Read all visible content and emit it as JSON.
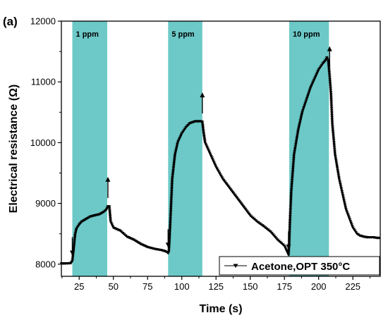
{
  "chart_data": {
    "type": "line",
    "panel_label": "(a)",
    "title": "",
    "xlabel": "Time (s)",
    "ylabel": "Electrical resistance (Ω)",
    "xlim": [
      12,
      245
    ],
    "ylim": [
      7800,
      12000
    ],
    "xticks": [
      25,
      50,
      75,
      100,
      125,
      150,
      175,
      200,
      225
    ],
    "yticks": [
      8000,
      9000,
      10000,
      11000,
      12000
    ],
    "grid": false,
    "legend": {
      "position": "bottom-right",
      "entries": [
        "Acetone,OPT 350°C"
      ]
    },
    "band_color": "#6cc9c7",
    "line_color": "#000000",
    "exposure_bands": [
      {
        "label": "1 ppm",
        "start": 20,
        "end": 45.5
      },
      {
        "label": "5 ppm",
        "start": 90,
        "end": 115
      },
      {
        "label": "10 ppm",
        "start": 178.5,
        "end": 207.5
      }
    ],
    "arrows": [
      {
        "x": 20,
        "direction": "down"
      },
      {
        "x": 46,
        "direction": "up"
      },
      {
        "x": 90,
        "direction": "down"
      },
      {
        "x": 115,
        "direction": "up"
      },
      {
        "x": 178,
        "direction": "down"
      },
      {
        "x": 208,
        "direction": "up"
      }
    ],
    "series": [
      {
        "name": "Acetone,OPT 350°C",
        "marker": "triangle-down",
        "x": [
          12,
          15,
          19,
          20,
          21,
          22,
          23,
          25,
          27,
          30,
          33,
          36,
          40,
          43,
          44,
          45,
          46,
          47,
          48,
          50,
          55,
          60,
          65,
          70,
          75,
          80,
          85,
          88,
          89,
          90,
          90.5,
          91,
          92,
          93,
          95,
          97,
          100,
          103,
          106,
          110,
          112,
          114,
          115,
          116,
          117,
          118,
          120,
          125,
          130,
          135,
          140,
          145,
          150,
          155,
          160,
          165,
          170,
          175,
          177,
          178,
          178.5,
          179,
          180,
          182,
          185,
          188,
          191,
          194,
          197,
          200,
          203,
          205,
          206,
          207,
          208,
          209,
          210,
          212,
          215,
          220,
          225,
          228,
          230,
          233,
          236,
          240,
          243,
          245
        ],
        "y": [
          8010,
          8010,
          8015,
          8050,
          8250,
          8480,
          8580,
          8650,
          8700,
          8740,
          8780,
          8800,
          8820,
          8860,
          8880,
          8900,
          8950,
          8950,
          8700,
          8600,
          8550,
          8450,
          8400,
          8330,
          8280,
          8250,
          8230,
          8210,
          8200,
          8180,
          8200,
          8400,
          8900,
          9400,
          9800,
          10000,
          10150,
          10250,
          10320,
          10350,
          10350,
          10350,
          10340,
          10150,
          10000,
          9950,
          9850,
          9600,
          9400,
          9250,
          9100,
          8950,
          8800,
          8700,
          8620,
          8530,
          8400,
          8300,
          8200,
          8150,
          8350,
          8700,
          9200,
          9800,
          10200,
          10500,
          10700,
          10900,
          11050,
          11200,
          11300,
          11350,
          11400,
          11350,
          11100,
          10800,
          10300,
          9800,
          9400,
          8900,
          8600,
          8500,
          8470,
          8450,
          8440,
          8440,
          8430,
          8430
        ]
      }
    ]
  }
}
